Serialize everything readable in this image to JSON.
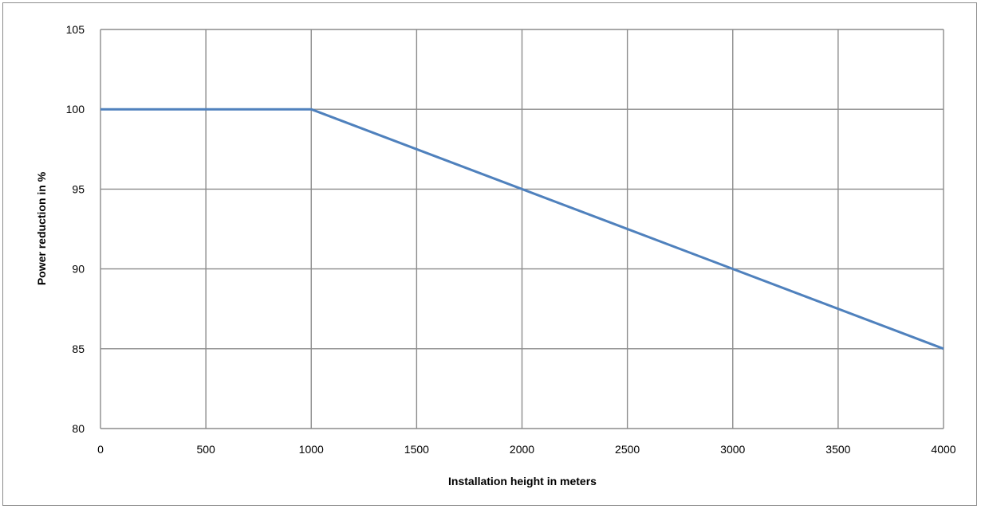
{
  "chart_data": {
    "type": "line",
    "title": "",
    "xlabel": "Installation height in meters",
    "ylabel": "Power reduction in %",
    "xlim": [
      0,
      4000
    ],
    "ylim": [
      80,
      105
    ],
    "xticks": [
      0,
      500,
      1000,
      1500,
      2000,
      2500,
      3000,
      3500,
      4000
    ],
    "yticks": [
      80,
      85,
      90,
      95,
      100,
      105
    ],
    "grid": true,
    "legend": "none",
    "series": [
      {
        "color": "#4f81bd",
        "x": [
          0,
          1000,
          4000
        ],
        "y": [
          100,
          100,
          85
        ]
      }
    ]
  }
}
